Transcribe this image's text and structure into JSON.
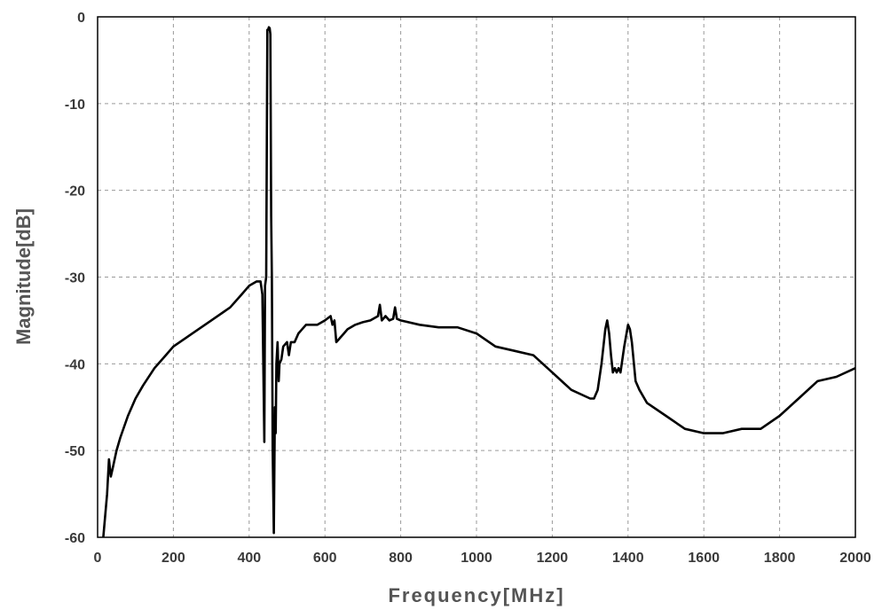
{
  "chart_data": {
    "type": "line",
    "title": "",
    "xlabel": "Frequency[MHz]",
    "ylabel": "Magnitude[dB]",
    "xlim": [
      0,
      2000
    ],
    "ylim": [
      -60,
      0
    ],
    "xticks": [
      0,
      200,
      400,
      600,
      800,
      1000,
      1200,
      1400,
      1600,
      1800,
      2000
    ],
    "yticks": [
      0,
      -10,
      -20,
      -30,
      -40,
      -50,
      -60
    ],
    "xtick_labels": [
      "0",
      "200",
      "400",
      "600",
      "800",
      "1000",
      "1200",
      "1400",
      "1600",
      "1800",
      "2000"
    ],
    "ytick_labels": [
      "0",
      "-10",
      "-20",
      "-30",
      "-40",
      "-50",
      "-60"
    ],
    "grid": true,
    "legend": "none",
    "line_color": "#000000",
    "series": [
      {
        "x": [
          15,
          25,
          30,
          35,
          40,
          50,
          60,
          80,
          100,
          120,
          150,
          180,
          200,
          250,
          300,
          350,
          380,
          400,
          420,
          430,
          435,
          440,
          442,
          445,
          448,
          450,
          452,
          454,
          456,
          458,
          460,
          462,
          465,
          468,
          470,
          472,
          475,
          478,
          480,
          485,
          490,
          500,
          505,
          510,
          520,
          530,
          540,
          550,
          560,
          580,
          600,
          615,
          620,
          625,
          630,
          640,
          650,
          660,
          680,
          700,
          720,
          740,
          745,
          750,
          760,
          770,
          780,
          785,
          790,
          800,
          850,
          900,
          950,
          1000,
          1050,
          1100,
          1150,
          1200,
          1250,
          1300,
          1310,
          1320,
          1330,
          1340,
          1345,
          1350,
          1355,
          1360,
          1365,
          1370,
          1375,
          1380,
          1390,
          1400,
          1405,
          1410,
          1420,
          1430,
          1450,
          1500,
          1550,
          1600,
          1650,
          1700,
          1750,
          1800,
          1850,
          1900,
          1950,
          2000
        ],
        "y": [
          -60,
          -55,
          -51,
          -53,
          -52,
          -50,
          -48.5,
          -46,
          -44,
          -42.5,
          -40.5,
          -39,
          -38,
          -36.5,
          -35,
          -33.5,
          -32,
          -31,
          -30.5,
          -30.5,
          -32,
          -49,
          -31,
          -30,
          -1.5,
          -1.5,
          -1.2,
          -1.3,
          -2,
          -23,
          -30,
          -50,
          -59.5,
          -45,
          -48,
          -40,
          -37.5,
          -42,
          -40,
          -39.5,
          -38,
          -37.5,
          -39,
          -37.5,
          -37.5,
          -36.5,
          -36,
          -35.5,
          -35.5,
          -35.5,
          -35,
          -34.5,
          -35.5,
          -35,
          -37.5,
          -37,
          -36.5,
          -36,
          -35.5,
          -35.2,
          -35,
          -34.5,
          -33.2,
          -35,
          -34.5,
          -35,
          -34.8,
          -33.5,
          -34.8,
          -35,
          -35.5,
          -35.8,
          -35.8,
          -36.5,
          -38,
          -38.5,
          -39,
          -41,
          -43,
          -44,
          -44,
          -43,
          -40,
          -36,
          -35,
          -36.5,
          -39,
          -41,
          -40.5,
          -41,
          -40.5,
          -41,
          -38,
          -35.5,
          -36,
          -37.5,
          -42,
          -43,
          -44.5,
          -46,
          -47.5,
          -48,
          -48,
          -47.5,
          -47.5,
          -46,
          -44,
          -42,
          -41.5,
          -40.5
        ]
      }
    ]
  }
}
